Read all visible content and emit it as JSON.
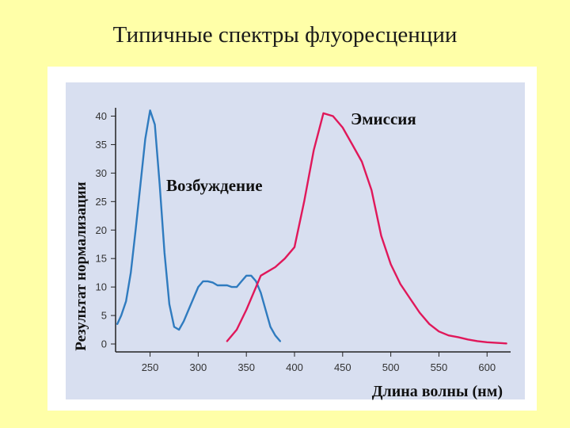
{
  "slide": {
    "title": "Типичные спектры флуоресценции"
  },
  "colors": {
    "slide_background": "#ffffa8",
    "card_background": "#ffffff",
    "plot_background": "#d8dff0",
    "excitation": "#2f7bbf",
    "emission": "#e0185a",
    "axis": "#222222"
  },
  "chart_data": {
    "type": "line",
    "title": "",
    "xlabel": "Длина волны (нм)",
    "ylabel": "Результат нормализации",
    "xlim": [
      215,
      622
    ],
    "ylim": [
      0,
      43
    ],
    "x_ticks": [
      250,
      300,
      350,
      400,
      450,
      500,
      550,
      600
    ],
    "y_ticks": [
      0,
      5,
      10,
      15,
      20,
      25,
      30,
      35,
      40
    ],
    "grid": false,
    "series": [
      {
        "name": "Возбуждение",
        "color": "#2f7bbf",
        "points": [
          [
            216,
            3.5
          ],
          [
            220,
            5
          ],
          [
            225,
            7.5
          ],
          [
            230,
            12.5
          ],
          [
            235,
            20
          ],
          [
            240,
            28
          ],
          [
            245,
            36
          ],
          [
            250,
            41
          ],
          [
            255,
            38.5
          ],
          [
            260,
            28
          ],
          [
            265,
            16
          ],
          [
            270,
            7
          ],
          [
            275,
            3
          ],
          [
            280,
            2.5
          ],
          [
            285,
            4
          ],
          [
            290,
            6
          ],
          [
            295,
            8
          ],
          [
            300,
            10
          ],
          [
            305,
            11
          ],
          [
            310,
            11
          ],
          [
            315,
            10.8
          ],
          [
            320,
            10.3
          ],
          [
            330,
            10.3
          ],
          [
            335,
            10
          ],
          [
            340,
            10
          ],
          [
            345,
            11
          ],
          [
            350,
            12
          ],
          [
            355,
            12
          ],
          [
            360,
            11
          ],
          [
            365,
            9
          ],
          [
            370,
            6
          ],
          [
            375,
            3
          ],
          [
            380,
            1.5
          ],
          [
            385,
            0.5
          ]
        ]
      },
      {
        "name": "Эмиссия",
        "color": "#e0185a",
        "points": [
          [
            330,
            0.5
          ],
          [
            340,
            2.5
          ],
          [
            350,
            6
          ],
          [
            360,
            10
          ],
          [
            365,
            12
          ],
          [
            370,
            12.5
          ],
          [
            380,
            13.5
          ],
          [
            390,
            15
          ],
          [
            400,
            17
          ],
          [
            410,
            25
          ],
          [
            420,
            34
          ],
          [
            430,
            40.5
          ],
          [
            440,
            40
          ],
          [
            450,
            38
          ],
          [
            460,
            35
          ],
          [
            470,
            32
          ],
          [
            480,
            27
          ],
          [
            490,
            19
          ],
          [
            500,
            14
          ],
          [
            510,
            10.5
          ],
          [
            520,
            8
          ],
          [
            530,
            5.5
          ],
          [
            540,
            3.5
          ],
          [
            550,
            2.2
          ],
          [
            560,
            1.5
          ],
          [
            570,
            1.2
          ],
          [
            580,
            0.8
          ],
          [
            590,
            0.5
          ],
          [
            600,
            0.3
          ],
          [
            610,
            0.2
          ],
          [
            620,
            0.1
          ]
        ]
      }
    ]
  }
}
